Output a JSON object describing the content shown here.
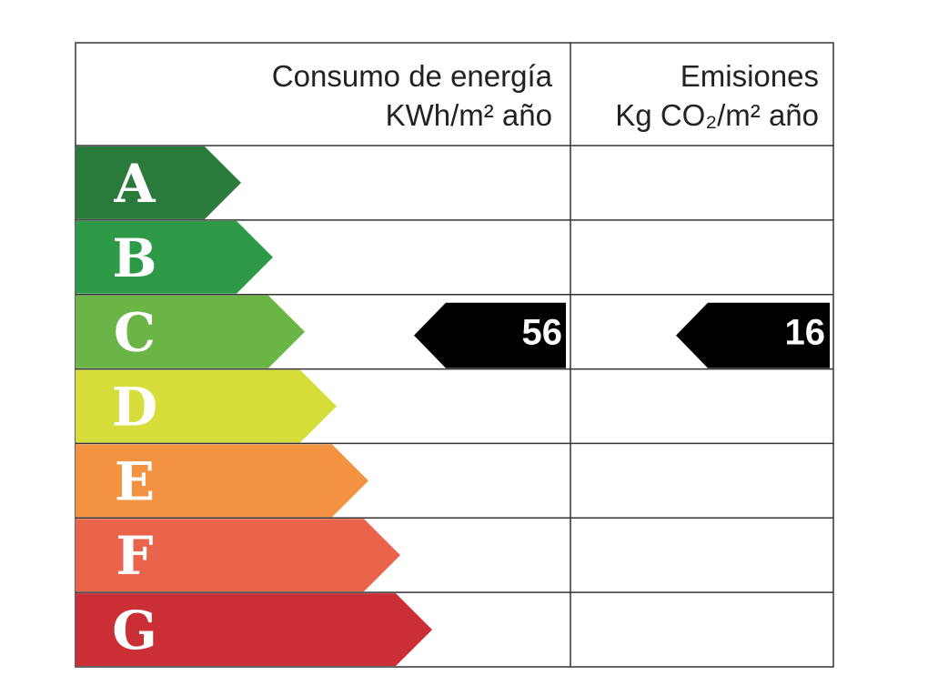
{
  "header": {
    "energy": {
      "title": "Consumo de energía",
      "unit": "KWh/m² año"
    },
    "emissions": {
      "title": "Emisiones",
      "unit": "Kg CO₂/m² año"
    }
  },
  "ratings": [
    {
      "letter": "A",
      "color": "#2a7a3b"
    },
    {
      "letter": "B",
      "color": "#2e9a48"
    },
    {
      "letter": "C",
      "color": "#6ab545",
      "energy": 56,
      "emissions": 16
    },
    {
      "letter": "D",
      "color": "#d7dd3b"
    },
    {
      "letter": "E",
      "color": "#f39241"
    },
    {
      "letter": "F",
      "color": "#ea634b"
    },
    {
      "letter": "G",
      "color": "#cb2f36"
    }
  ]
}
